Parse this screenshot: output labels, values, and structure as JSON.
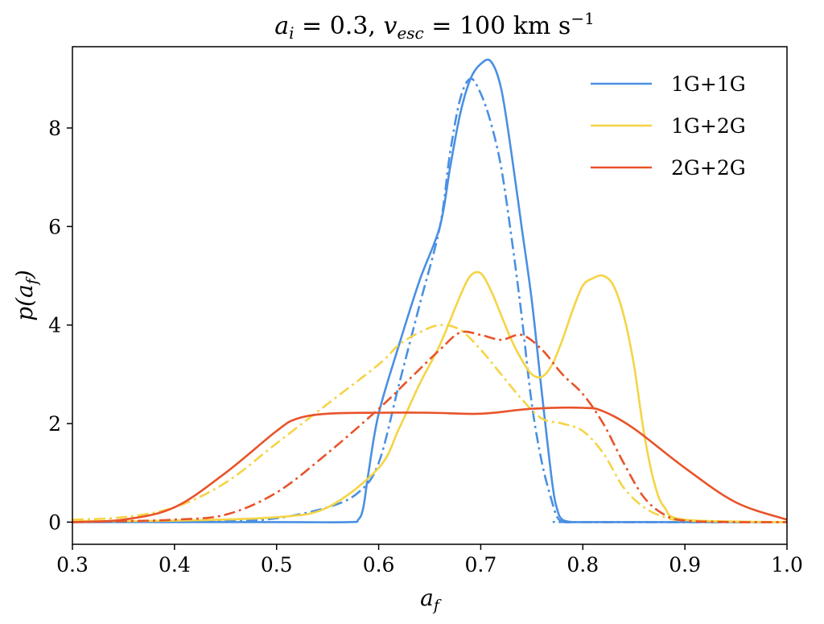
{
  "chart_data": {
    "type": "line",
    "title": "a_i = 0.3, v_esc = 100 km s^-1",
    "title_parts": {
      "a": "a",
      "a_sub": "i",
      "eq1": " = 0.3, ",
      "v": "v",
      "v_sub": "esc",
      "eq2": " = 100 km s",
      "sup": "−1"
    },
    "xlabel": "a_f",
    "xlabel_parts": {
      "main": "a",
      "sub": "f"
    },
    "ylabel": "p(a_f)",
    "ylabel_parts": {
      "pre": "p(a",
      "sub": "f",
      "post": ")"
    },
    "xlim": [
      0.3,
      1.0
    ],
    "ylim": [
      -0.45,
      9.65
    ],
    "xticks": [
      0.3,
      0.4,
      0.5,
      0.6,
      0.7,
      0.8,
      0.9,
      1.0
    ],
    "xtick_labels": [
      "0.3",
      "0.4",
      "0.5",
      "0.6",
      "0.7",
      "0.8",
      "0.9",
      "1.0"
    ],
    "yticks": [
      0,
      2,
      4,
      6,
      8
    ],
    "ytick_labels": [
      "0",
      "2",
      "4",
      "6",
      "8"
    ],
    "grid": false,
    "legend": {
      "position": "top-right",
      "entries": [
        {
          "label": "1G+1G",
          "color": "#4a90e2"
        },
        {
          "label": "1G+2G",
          "color": "#f5d445"
        },
        {
          "label": "2G+2G",
          "color": "#e8532a"
        }
      ]
    },
    "series": [
      {
        "name": "1G+1G",
        "color": "#4a90e2",
        "style": "solid",
        "x": [
          0.3,
          0.5,
          0.57,
          0.58,
          0.585,
          0.59,
          0.6,
          0.62,
          0.64,
          0.66,
          0.67,
          0.68,
          0.69,
          0.7,
          0.71,
          0.72,
          0.73,
          0.74,
          0.75,
          0.76,
          0.77,
          0.775,
          0.78,
          0.79,
          0.8,
          1.0
        ],
        "y": [
          0,
          0,
          0,
          0.05,
          0.3,
          1.0,
          2.2,
          3.6,
          4.9,
          6.0,
          7.2,
          8.3,
          9.0,
          9.3,
          9.35,
          8.8,
          7.5,
          6.0,
          4.5,
          2.6,
          0.8,
          0.25,
          0.05,
          0,
          0,
          0
        ]
      },
      {
        "name": "1G+1G (dash-dot)",
        "color": "#4a90e2",
        "style": "dashdot",
        "x": [
          0.3,
          0.45,
          0.5,
          0.55,
          0.58,
          0.6,
          0.62,
          0.64,
          0.66,
          0.67,
          0.68,
          0.69,
          0.7,
          0.71,
          0.72,
          0.73,
          0.74,
          0.75,
          0.76,
          0.77,
          0.775,
          0.78,
          0.79,
          1.0
        ],
        "y": [
          0,
          0.02,
          0.08,
          0.3,
          0.6,
          1.2,
          2.8,
          4.4,
          6.0,
          7.5,
          8.6,
          9.0,
          8.7,
          8.1,
          7.2,
          5.8,
          4.2,
          2.4,
          1.2,
          0.4,
          0.1,
          0.02,
          0,
          0
        ]
      },
      {
        "name": "1G+2G",
        "color": "#f5d445",
        "style": "solid",
        "x": [
          0.3,
          0.4,
          0.5,
          0.55,
          0.6,
          0.62,
          0.64,
          0.66,
          0.68,
          0.69,
          0.7,
          0.71,
          0.72,
          0.73,
          0.74,
          0.75,
          0.76,
          0.77,
          0.78,
          0.79,
          0.8,
          0.81,
          0.82,
          0.83,
          0.84,
          0.85,
          0.86,
          0.87,
          0.88,
          0.9,
          1.0
        ],
        "y": [
          0.02,
          0.03,
          0.1,
          0.3,
          1.1,
          1.9,
          2.8,
          3.6,
          4.6,
          5.0,
          5.05,
          4.7,
          4.2,
          3.7,
          3.3,
          3.0,
          2.95,
          3.2,
          3.7,
          4.3,
          4.8,
          4.95,
          5.0,
          4.8,
          4.2,
          3.2,
          1.8,
          0.8,
          0.3,
          0.05,
          0
        ]
      },
      {
        "name": "1G+2G (dash-dot)",
        "color": "#f5d445",
        "style": "dashdot",
        "x": [
          0.3,
          0.35,
          0.4,
          0.45,
          0.5,
          0.55,
          0.6,
          0.62,
          0.64,
          0.66,
          0.68,
          0.7,
          0.72,
          0.74,
          0.76,
          0.78,
          0.8,
          0.82,
          0.84,
          0.86,
          0.88,
          0.9,
          0.95,
          1.0
        ],
        "y": [
          0.05,
          0.1,
          0.3,
          0.8,
          1.6,
          2.4,
          3.2,
          3.6,
          3.85,
          4.0,
          3.9,
          3.5,
          3.0,
          2.5,
          2.1,
          2.0,
          1.85,
          1.4,
          0.7,
          0.3,
          0.1,
          0.03,
          0.01,
          0
        ]
      },
      {
        "name": "2G+2G",
        "color": "#e8532a",
        "style": "solid",
        "x": [
          0.3,
          0.35,
          0.4,
          0.45,
          0.5,
          0.52,
          0.55,
          0.6,
          0.65,
          0.7,
          0.75,
          0.8,
          0.82,
          0.85,
          0.9,
          0.95,
          1.0
        ],
        "y": [
          0,
          0.05,
          0.3,
          1.0,
          1.85,
          2.1,
          2.2,
          2.22,
          2.22,
          2.2,
          2.3,
          2.32,
          2.25,
          1.9,
          1.1,
          0.4,
          0.05
        ]
      },
      {
        "name": "2G+2G (dash-dot)",
        "color": "#e8532a",
        "style": "dashdot",
        "x": [
          0.3,
          0.35,
          0.4,
          0.45,
          0.5,
          0.55,
          0.6,
          0.63,
          0.66,
          0.68,
          0.7,
          0.72,
          0.74,
          0.76,
          0.78,
          0.8,
          0.82,
          0.84,
          0.86,
          0.88,
          0.9,
          0.95,
          1.0
        ],
        "y": [
          0,
          0.02,
          0.05,
          0.15,
          0.6,
          1.4,
          2.3,
          2.9,
          3.5,
          3.85,
          3.8,
          3.7,
          3.8,
          3.5,
          3.0,
          2.6,
          2.0,
          1.2,
          0.5,
          0.15,
          0.03,
          0,
          0
        ]
      }
    ]
  }
}
